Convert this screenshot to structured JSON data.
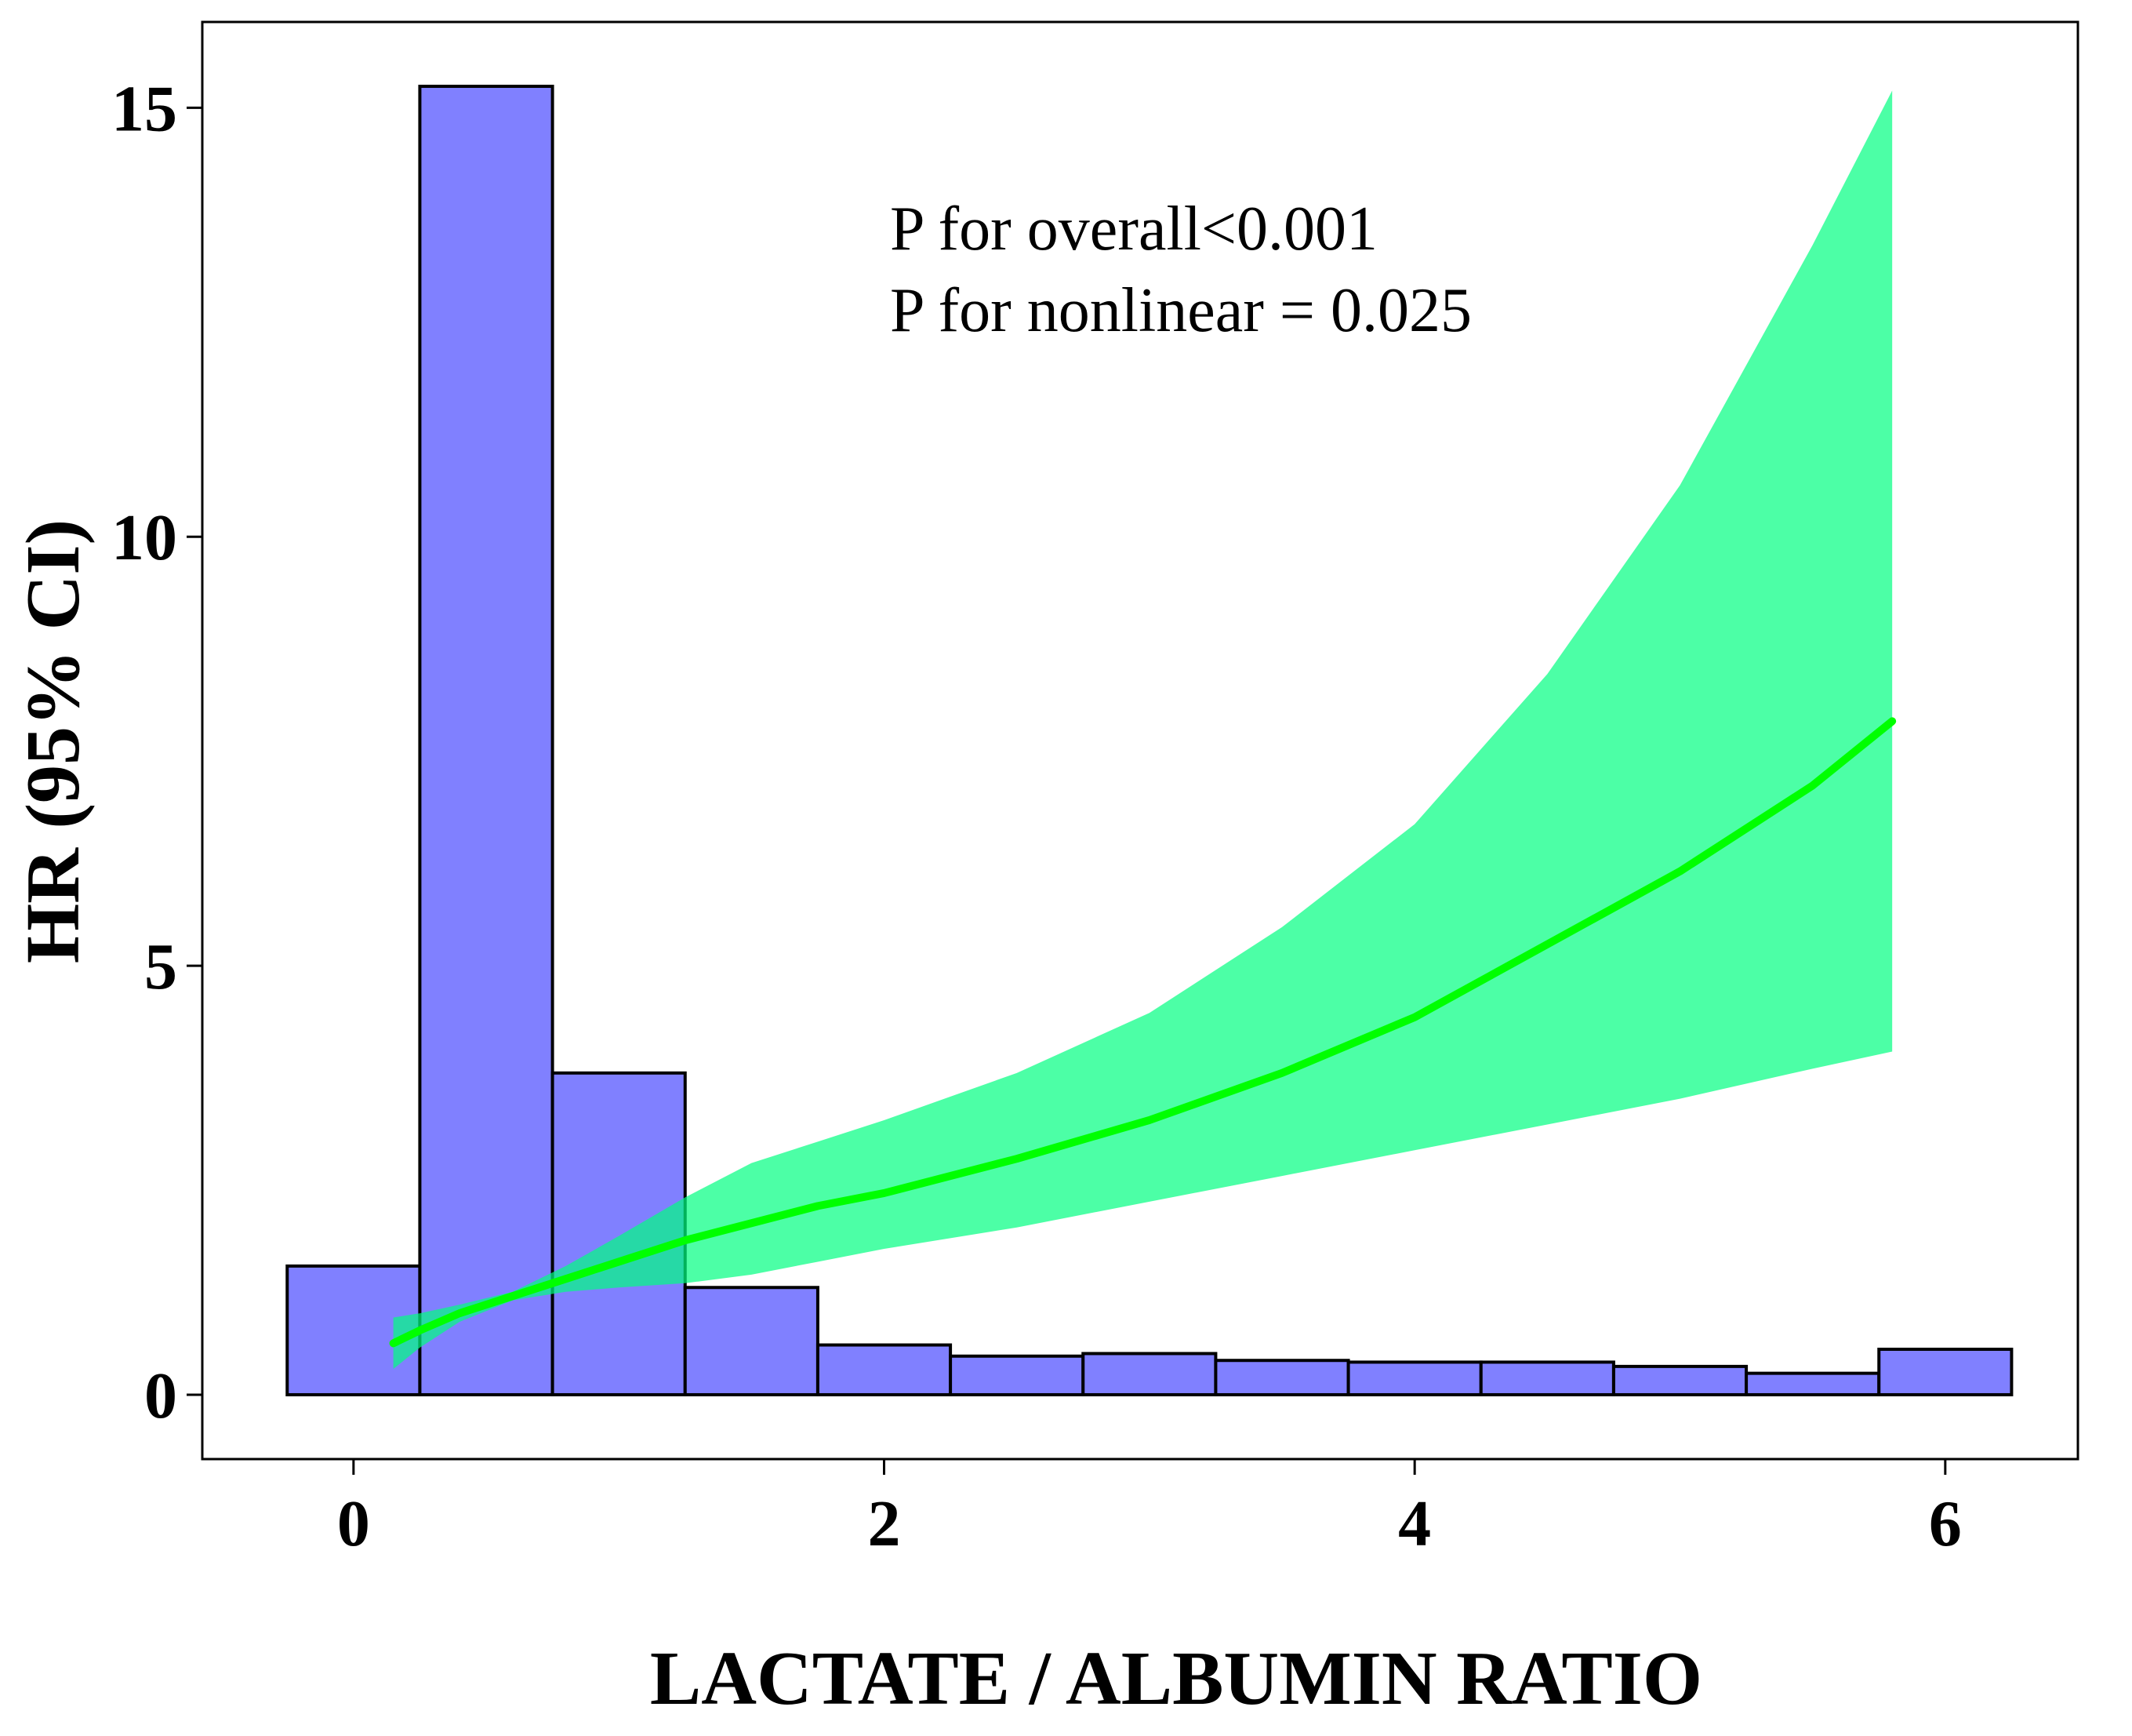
{
  "chart_data": {
    "type": "line",
    "xlabel": "LACTATE / ALBUMIN RATIO",
    "ylabel": "HR (95% CI)",
    "xlim": [
      -0.57,
      6.5
    ],
    "ylim": [
      -0.75,
      16.0
    ],
    "x_ticks": [
      0,
      2,
      4,
      6
    ],
    "x_tick_labels": [
      "0",
      "2",
      "4",
      "6"
    ],
    "y_ticks": [
      0,
      5,
      10,
      15
    ],
    "y_tick_labels": [
      "0",
      "5",
      "10",
      "15"
    ],
    "grid": false,
    "annotations": [
      "P for overall<0.001",
      "P for nonlinear = 0.025"
    ],
    "histogram": {
      "bin_edges": [
        -0.25,
        0.25,
        0.75,
        1.25,
        1.75,
        2.25,
        2.75,
        3.25,
        3.75,
        4.25,
        4.75,
        5.25,
        5.75,
        6.25
      ],
      "heights": [
        1.5,
        15.25,
        3.75,
        1.25,
        0.58,
        0.45,
        0.48,
        0.4,
        0.38,
        0.38,
        0.33,
        0.25,
        0.53
      ],
      "color": "#8080ff"
    },
    "series": [
      {
        "x": [
          0.15,
          0.25,
          0.4,
          0.6,
          0.8,
          1.0,
          1.25,
          1.5,
          1.75,
          2.0,
          2.5,
          3.0,
          3.5,
          4.0,
          4.5,
          5.0,
          5.5,
          5.8
        ],
        "y": [
          0.6,
          0.75,
          0.95,
          1.15,
          1.35,
          1.55,
          1.8,
          2.0,
          2.2,
          2.35,
          2.75,
          3.2,
          3.75,
          4.4,
          5.25,
          6.1,
          7.1,
          7.85
        ],
        "lower": [
          0.3,
          0.55,
          0.85,
          1.1,
          1.2,
          1.25,
          1.3,
          1.4,
          1.55,
          1.7,
          1.95,
          2.25,
          2.55,
          2.85,
          3.15,
          3.45,
          3.8,
          4.0
        ],
        "upper": [
          0.9,
          0.95,
          1.05,
          1.2,
          1.5,
          1.85,
          2.3,
          2.7,
          2.95,
          3.2,
          3.75,
          4.45,
          5.45,
          6.65,
          8.4,
          10.6,
          13.4,
          15.2
        ],
        "color": "#00ff00",
        "band_color": "#00ff80"
      }
    ]
  }
}
